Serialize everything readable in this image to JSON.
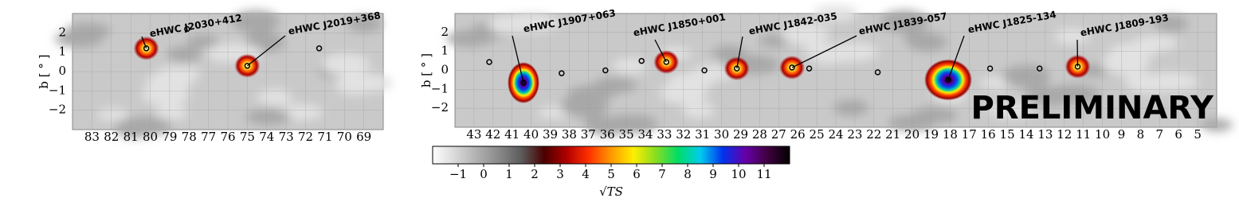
{
  "chart_data": [
    {
      "type": "skymap",
      "ylabel": "b [ ° ]",
      "xlim": [
        84,
        68
      ],
      "ylim": [
        -3,
        3
      ],
      "xticks": [
        83,
        82,
        81,
        80,
        79,
        78,
        77,
        76,
        75,
        74,
        73,
        72,
        71,
        70,
        69
      ],
      "yticks": [
        {
          "value": -2,
          "label": "−2"
        },
        {
          "value": -1,
          "label": "−1"
        },
        0,
        1,
        2
      ],
      "grid": true,
      "sources": [
        {
          "name": "eHWC J2030+412",
          "x": 80.2,
          "y": 1.2
        },
        {
          "name": "eHWC J2019+368",
          "x": 75.0,
          "y": 0.3
        }
      ],
      "catalog": {
        "x": [
          78.1,
          71.3
        ],
        "y": [
          2.2,
          1.2
        ]
      }
    },
    {
      "type": "skymap",
      "ylabel": "b [ ° ]",
      "xlim": [
        44,
        4
      ],
      "ylim": [
        -3,
        3
      ],
      "xticks": [
        43,
        42,
        41,
        40,
        39,
        38,
        37,
        36,
        35,
        34,
        33,
        32,
        31,
        30,
        29,
        28,
        27,
        26,
        25,
        24,
        23,
        22,
        21,
        20,
        19,
        18,
        17,
        16,
        15,
        14,
        13,
        12,
        11,
        10,
        9,
        8,
        7,
        6,
        5
      ],
      "yticks": [
        {
          "value": -2,
          "label": "−2"
        },
        {
          "value": -1,
          "label": "−1"
        },
        0,
        1,
        2
      ],
      "grid": true,
      "sources": [
        {
          "name": "eHWC J1907+063",
          "x": 40.4,
          "y": -0.65
        },
        {
          "name": "eHWC J1850+001",
          "x": 32.9,
          "y": 0.44
        },
        {
          "name": "eHWC J1842-035",
          "x": 29.2,
          "y": 0.1
        },
        {
          "name": "eHWC J1839-057",
          "x": 26.3,
          "y": 0.15
        },
        {
          "name": "eHWC J1825-134",
          "x": 18.1,
          "y": -0.5
        },
        {
          "name": "eHWC J1809-193",
          "x": 11.3,
          "y": 0.2
        }
      ],
      "catalog": {
        "x": [
          42.2,
          38.4,
          36.1,
          34.2,
          30.9,
          25.4,
          21.8,
          15.9,
          13.3
        ],
        "y": [
          0.44,
          -0.15,
          0,
          0.5,
          0,
          0.1,
          -0.1,
          0.1,
          0.1
        ]
      },
      "annotation": "PRELIMINARY"
    },
    {
      "type": "colorbar",
      "xlabel": "√TS",
      "xlim": [
        -2,
        12
      ],
      "xticks": [
        {
          "value": -1,
          "label": "−1"
        },
        0,
        1,
        2,
        3,
        4,
        5,
        6,
        7,
        8,
        9,
        10,
        11
      ],
      "colormap": [
        "#ffffff",
        "#d8d8d8",
        "#b0b0b0",
        "#888888",
        "#5a5a5a",
        "#4a0000",
        "#b00000",
        "#ff3000",
        "#ff9900",
        "#ffee00",
        "#88dd22",
        "#00dd66",
        "#00ccee",
        "#0033ee",
        "#6600aa",
        "#400040",
        "#000000"
      ]
    }
  ]
}
